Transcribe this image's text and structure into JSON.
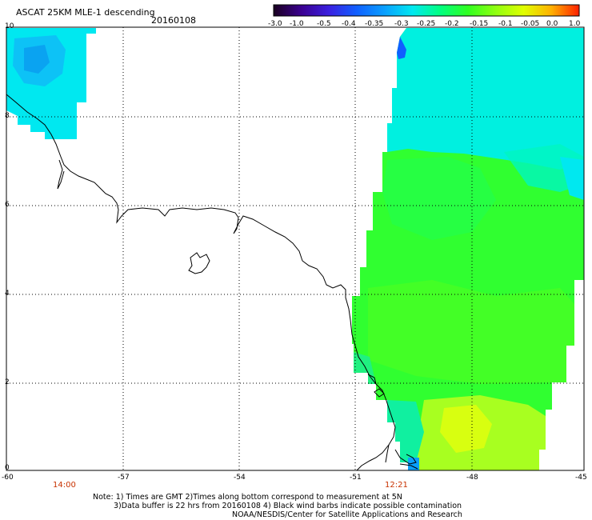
{
  "header": {
    "title": "ASCAT 25KM MLE-1 descending",
    "date": "20160108"
  },
  "colorbar": {
    "labels": [
      "-3.0",
      "-1.0",
      "-0.5",
      "-0.4",
      "-0.35",
      "-0.3",
      "-0.25",
      "-0.2",
      "-0.15",
      "-0.1",
      "-0.05",
      "0.0",
      "1.0"
    ],
    "colors": [
      "#1a0020",
      "#3a0090",
      "#3a20e0",
      "#1060ff",
      "#0aa0ff",
      "#00e8f0",
      "#00ff80",
      "#30ff20",
      "#90ff10",
      "#e0ff00",
      "#ffb000",
      "#ff2000"
    ]
  },
  "axes": {
    "x_ticks": [
      "-60",
      "-57",
      "-54",
      "-51",
      "-48",
      "-45"
    ],
    "y_ticks": [
      "10",
      "8",
      "6",
      "4",
      "2",
      "0"
    ]
  },
  "times": [
    "14:00",
    "12:21"
  ],
  "notes": [
    "Note: 1) Times are GMT 2)Times along bottom correspond to measurement at 5N",
    "3)Data buffer is 22 hrs from 20160108 4) Black wind barbs indicate possible contamination",
    "NOAA/NESDIS/Center for Satellite Applications and Research"
  ]
}
